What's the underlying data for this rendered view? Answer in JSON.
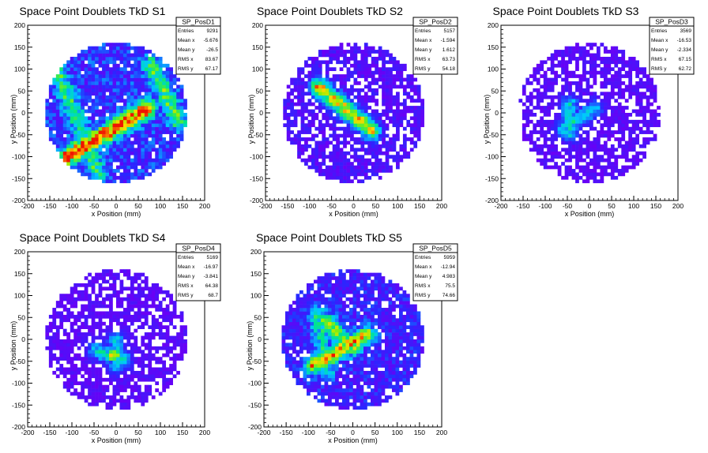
{
  "chart_data": [
    {
      "type": "heatmap",
      "title": "Space Point Doublets TkD S1",
      "xlabel": "x Position (mm)",
      "ylabel": "y Position (mm)",
      "xlim": [
        -200,
        200
      ],
      "ylim": [
        -200,
        200
      ],
      "xticks": [
        "-200",
        "-150",
        "-100",
        "-50",
        "0",
        "50",
        "100",
        "150",
        "200"
      ],
      "yticks": [
        "-200",
        "-150",
        "-100",
        "-50",
        "0",
        "50",
        "100",
        "150",
        "200"
      ],
      "stats": {
        "name": "SP_PosD1",
        "rows": [
          [
            "Entries",
            "9291"
          ],
          [
            "Mean x",
            "-5.676"
          ],
          [
            "Mean y",
            "-26.5"
          ],
          [
            "RMS x",
            "83.67"
          ],
          [
            "RMS y",
            "67.17"
          ]
        ]
      },
      "density": "high",
      "features": [
        {
          "kind": "band",
          "from": [
            -110,
            -100
          ],
          "to": [
            70,
            10
          ],
          "peak": 0.9
        },
        {
          "kind": "band",
          "from": [
            -130,
            90
          ],
          "to": [
            -40,
            -140
          ],
          "peak": 0.4
        },
        {
          "kind": "band",
          "from": [
            80,
            110
          ],
          "to": [
            140,
            -20
          ],
          "peak": 0.45
        }
      ]
    },
    {
      "type": "heatmap",
      "title": "Space Point Doublets TkD S2",
      "xlabel": "x Position (mm)",
      "ylabel": "y Position (mm)",
      "xlim": [
        -200,
        200
      ],
      "ylim": [
        -200,
        200
      ],
      "xticks": [
        "-200",
        "-150",
        "-100",
        "-50",
        "0",
        "50",
        "100",
        "150",
        "200"
      ],
      "yticks": [
        "-200",
        "-150",
        "-100",
        "-50",
        "0",
        "50",
        "100",
        "150",
        "200"
      ],
      "stats": {
        "name": "SP_PosD2",
        "rows": [
          [
            "Entries",
            "5157"
          ],
          [
            "Mean x",
            "-1.594"
          ],
          [
            "Mean y",
            "1.612"
          ],
          [
            "RMS x",
            "63.73"
          ],
          [
            "RMS y",
            "54.18"
          ]
        ]
      },
      "density": "medium",
      "features": [
        {
          "kind": "band",
          "from": [
            -80,
            60
          ],
          "to": [
            40,
            -40
          ],
          "peak": 0.8
        }
      ]
    },
    {
      "type": "heatmap",
      "title": "Space Point Doublets TkD S3",
      "xlabel": "x Position (mm)",
      "ylabel": "y Position (mm)",
      "xlim": [
        -200,
        200
      ],
      "ylim": [
        -200,
        200
      ],
      "xticks": [
        "-200",
        "-150",
        "-100",
        "-50",
        "0",
        "50",
        "100",
        "150",
        "200"
      ],
      "yticks": [
        "-200",
        "-150",
        "-100",
        "-50",
        "0",
        "50",
        "100",
        "150",
        "200"
      ],
      "stats": {
        "name": "SP_PosD3",
        "rows": [
          [
            "Entries",
            "3569"
          ],
          [
            "Mean x",
            "-16.53"
          ],
          [
            "Mean y",
            "-2.334"
          ],
          [
            "RMS x",
            "67.15"
          ],
          [
            "RMS y",
            "62.72"
          ]
        ]
      },
      "density": "low",
      "features": [
        {
          "kind": "spot",
          "center": [
            -35,
            -15
          ],
          "peak": 0.6
        },
        {
          "kind": "band",
          "from": [
            -45,
            20
          ],
          "to": [
            -45,
            -45
          ],
          "peak": 0.45
        },
        {
          "kind": "band",
          "from": [
            -60,
            -35
          ],
          "to": [
            10,
            10
          ],
          "peak": 0.4
        }
      ]
    },
    {
      "type": "heatmap",
      "title": "Space Point Doublets TkD S4",
      "xlabel": "x Position (mm)",
      "ylabel": "y Position (mm)",
      "xlim": [
        -200,
        200
      ],
      "ylim": [
        -200,
        200
      ],
      "xticks": [
        "-200",
        "-150",
        "-100",
        "-50",
        "0",
        "50",
        "100",
        "150",
        "200"
      ],
      "yticks": [
        "-200",
        "-150",
        "-100",
        "-50",
        "0",
        "50",
        "100",
        "150",
        "200"
      ],
      "stats": {
        "name": "SP_PosD4",
        "rows": [
          [
            "Entries",
            "5169"
          ],
          [
            "Mean x",
            "-16.97"
          ],
          [
            "Mean y",
            "-3.841"
          ],
          [
            "RMS x",
            "64.38"
          ],
          [
            "RMS y",
            "68.7"
          ]
        ]
      },
      "density": "low",
      "features": [
        {
          "kind": "spot",
          "center": [
            -5,
            -35
          ],
          "peak": 0.9
        },
        {
          "kind": "band",
          "from": [
            -45,
            -25
          ],
          "to": [
            15,
            -45
          ],
          "peak": 0.45
        },
        {
          "kind": "band",
          "from": [
            0,
            0
          ],
          "to": [
            0,
            -60
          ],
          "peak": 0.4
        }
      ]
    },
    {
      "type": "heatmap",
      "title": "Space Point Doublets TkD S5",
      "xlabel": "x Position (mm)",
      "ylabel": "y Position (mm)",
      "xlim": [
        -200,
        200
      ],
      "ylim": [
        -200,
        200
      ],
      "xticks": [
        "-200",
        "-150",
        "-100",
        "-50",
        "0",
        "50",
        "100",
        "150",
        "200"
      ],
      "yticks": [
        "-200",
        "-150",
        "-100",
        "-50",
        "0",
        "50",
        "100",
        "150",
        "200"
      ],
      "stats": {
        "name": "SP_PosD5",
        "rows": [
          [
            "Entries",
            "5959"
          ],
          [
            "Mean x",
            "-12.94"
          ],
          [
            "Mean y",
            "4.983"
          ],
          [
            "RMS x",
            "75.5"
          ],
          [
            "RMS y",
            "74.66"
          ]
        ]
      },
      "density": "medium-high",
      "features": [
        {
          "kind": "band",
          "from": [
            -90,
            -60
          ],
          "to": [
            30,
            10
          ],
          "peak": 0.75
        },
        {
          "kind": "band",
          "from": [
            -60,
            40
          ],
          "to": [
            0,
            -20
          ],
          "peak": 0.6
        },
        {
          "kind": "band",
          "from": [
            -80,
            60
          ],
          "to": [
            -60,
            -70
          ],
          "peak": 0.4
        }
      ]
    }
  ],
  "colors": {
    "frame": "#000000",
    "palette_low": "#6a00f5",
    "palette_high": "#ff0000"
  }
}
